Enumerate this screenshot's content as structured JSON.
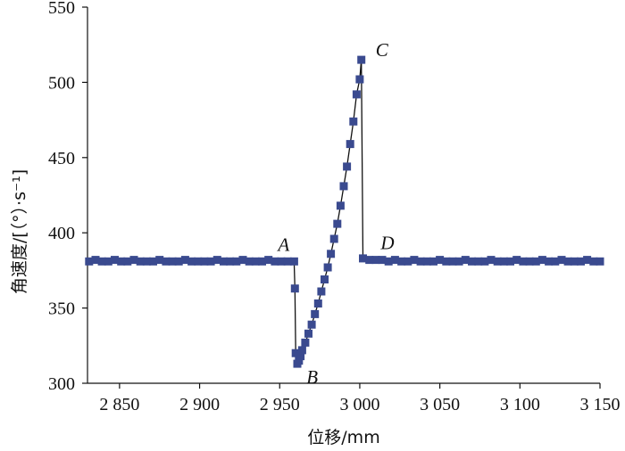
{
  "chart_data": {
    "type": "scatter",
    "title": "",
    "xlabel": "位移/mm",
    "ylabel": "角速度/[（°）·s⁻¹]",
    "xlim": [
      2830,
      3150
    ],
    "ylim": [
      300,
      550
    ],
    "x_ticks": [
      2850,
      2900,
      2950,
      3000,
      3050,
      3100,
      3150
    ],
    "x_tick_labels": [
      "2 850",
      "2 900",
      "2 950",
      "3 000",
      "3 050",
      "3 100",
      "3 150"
    ],
    "y_ticks": [
      300,
      350,
      400,
      450,
      500,
      550
    ],
    "y_tick_labels": [
      "300",
      "350",
      "400",
      "450",
      "500",
      "550"
    ],
    "grid": false,
    "colors": {
      "marker": "#3a4a8f",
      "line": "#111111"
    },
    "annotations": [
      {
        "text": "A",
        "x": 2959,
        "y": 381
      },
      {
        "text": "B",
        "x": 2960,
        "y": 313
      },
      {
        "text": "C",
        "x": 3001,
        "y": 515
      },
      {
        "text": "D",
        "x": 3003,
        "y": 382
      }
    ],
    "series": [
      {
        "name": "",
        "x": [
          2831,
          2835,
          2839,
          2843,
          2847,
          2851,
          2855,
          2859,
          2863,
          2867,
          2871,
          2875,
          2879,
          2883,
          2887,
          2891,
          2895,
          2899,
          2903,
          2907,
          2911,
          2915,
          2919,
          2923,
          2927,
          2931,
          2935,
          2939,
          2943,
          2947,
          2951,
          2955,
          2959,
          2959.5,
          2960,
          2961,
          2962,
          2963,
          2964,
          2966,
          2968,
          2970,
          2972,
          2974,
          2976,
          2978,
          2980,
          2982,
          2984,
          2986,
          2988,
          2990,
          2992,
          2994,
          2996,
          2998,
          3000,
          3001,
          3002,
          3006,
          3010,
          3014,
          3018,
          3022,
          3026,
          3030,
          3034,
          3038,
          3042,
          3046,
          3050,
          3054,
          3058,
          3062,
          3066,
          3070,
          3074,
          3078,
          3082,
          3086,
          3090,
          3094,
          3098,
          3102,
          3106,
          3110,
          3114,
          3118,
          3122,
          3126,
          3130,
          3134,
          3138,
          3142,
          3146,
          3150
        ],
        "y": [
          381,
          382,
          381,
          381,
          382,
          381,
          381,
          382,
          381,
          381,
          381,
          382,
          381,
          381,
          381,
          382,
          381,
          381,
          381,
          381,
          382,
          381,
          381,
          381,
          382,
          381,
          381,
          381,
          382,
          381,
          381,
          381,
          381,
          363,
          320,
          313,
          315,
          318,
          322,
          327,
          333,
          339,
          346,
          353,
          361,
          369,
          377,
          386,
          396,
          406,
          418,
          431,
          444,
          459,
          474,
          492,
          502,
          515,
          383,
          382,
          382,
          382,
          381,
          382,
          381,
          381,
          382,
          381,
          381,
          381,
          382,
          381,
          381,
          381,
          382,
          381,
          381,
          381,
          382,
          381,
          381,
          381,
          382,
          381,
          381,
          381,
          382,
          381,
          381,
          382,
          381,
          381,
          381,
          382,
          381,
          381
        ]
      }
    ]
  }
}
